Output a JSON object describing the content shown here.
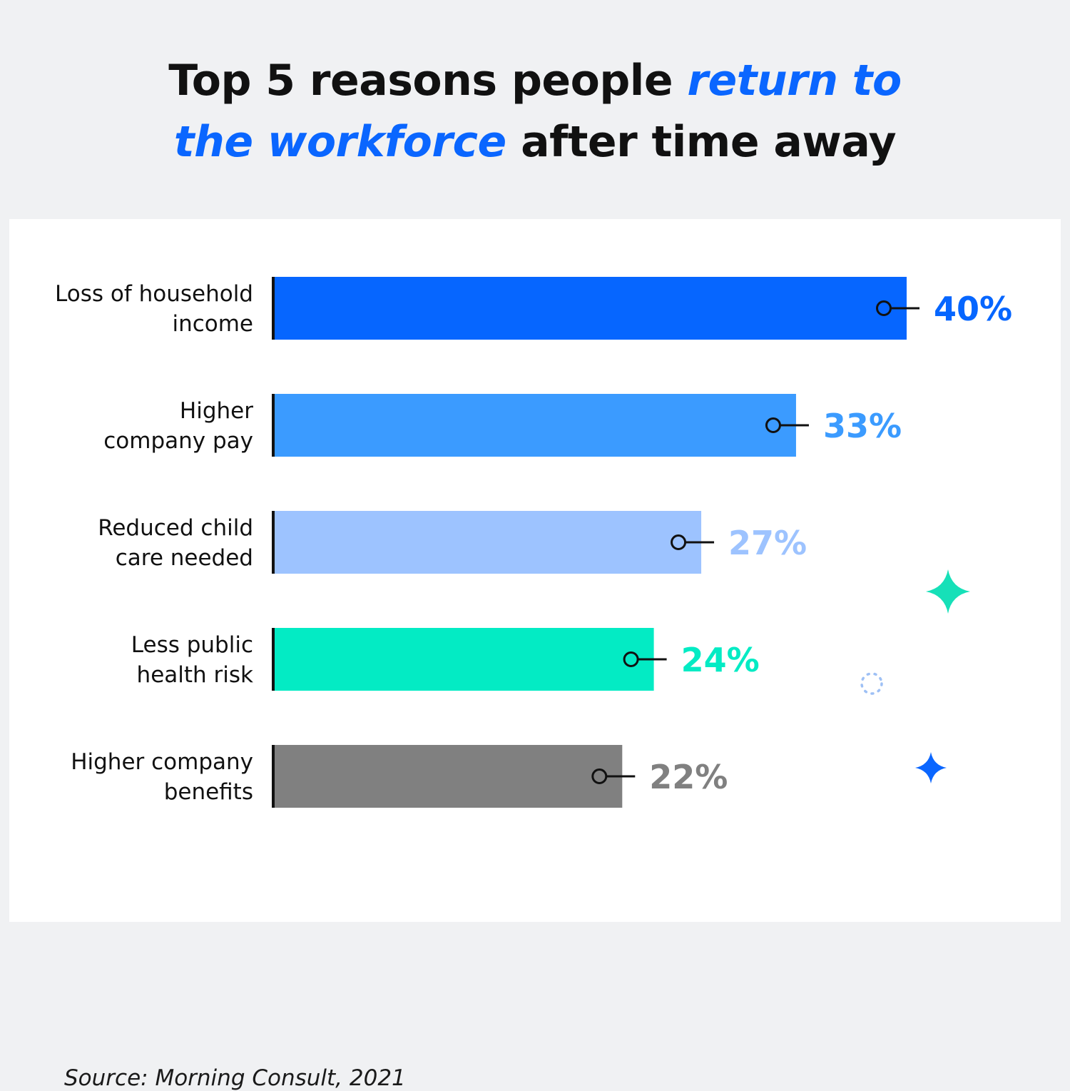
{
  "title": {
    "part1": "Top 5 reasons people ",
    "highlight1": "return to",
    "highlight2": "the workforce",
    "part2": " after time away"
  },
  "source": "Source: Morning Consult, 2021",
  "colors": {
    "title_highlight": "#0a66ff",
    "dot_line": "#111111",
    "sparkle_teal": "#16e0b8",
    "sparkle_blue": "#0a66ff",
    "dotted_circle": "#9ec0f5"
  },
  "chart_data": {
    "type": "bar",
    "orientation": "horizontal",
    "categories": [
      [
        "Loss of household",
        "income"
      ],
      [
        "Higher",
        "company pay"
      ],
      [
        "Reduced child",
        "care needed"
      ],
      [
        "Less public",
        "health risk"
      ],
      [
        "Higher company",
        "benefits"
      ]
    ],
    "values": [
      40,
      33,
      27,
      24,
      22
    ],
    "value_labels": [
      "40%",
      "33%",
      "27%",
      "24%",
      "22%"
    ],
    "bar_colors": [
      "#0666ff",
      "#3b9bff",
      "#9dc3ff",
      "#03ebc4",
      "#808080"
    ],
    "label_colors": [
      "#0666ff",
      "#3b9bff",
      "#9dc3ff",
      "#03ebc4",
      "#808080"
    ],
    "unit": "%",
    "xlim": [
      0,
      40
    ],
    "grid": false,
    "legend": "none"
  }
}
